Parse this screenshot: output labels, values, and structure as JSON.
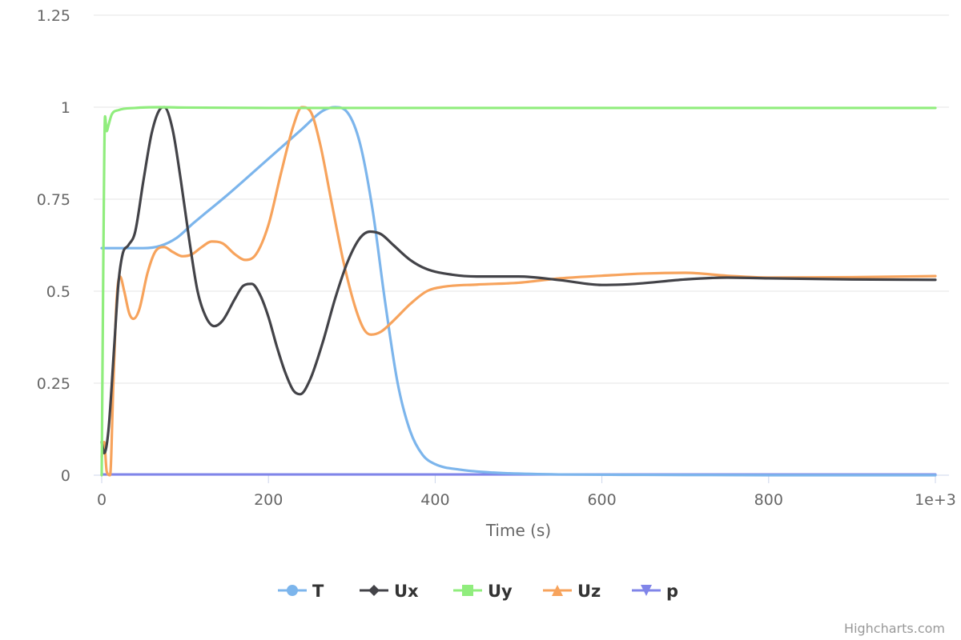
{
  "chart_data": {
    "type": "line",
    "title": "",
    "xlabel": "Time (s)",
    "ylabel": "",
    "xlim": [
      0,
      1000
    ],
    "ylim": [
      0,
      1.25
    ],
    "x_ticks": [
      0,
      200,
      400,
      600,
      800,
      1000
    ],
    "x_tick_labels": [
      "0",
      "200",
      "400",
      "600",
      "800",
      "1e+3"
    ],
    "y_ticks": [
      0,
      0.25,
      0.5,
      0.75,
      1,
      1.25
    ],
    "y_tick_labels": [
      "0",
      "0.25",
      "0.5",
      "0.75",
      "1",
      "1.25"
    ],
    "grid": "horizontal",
    "legend_position": "bottom",
    "credits": "Highcharts.com",
    "series": [
      {
        "name": "T",
        "color": "#7cb5ec",
        "marker": "circle",
        "points": [
          [
            0,
            0.617
          ],
          [
            20,
            0.617
          ],
          [
            50,
            0.617
          ],
          [
            70,
            0.623
          ],
          [
            90,
            0.645
          ],
          [
            110,
            0.685
          ],
          [
            150,
            0.76
          ],
          [
            200,
            0.86
          ],
          [
            240,
            0.94
          ],
          [
            265,
            0.99
          ],
          [
            280,
            1.0
          ],
          [
            295,
            0.985
          ],
          [
            310,
            0.9
          ],
          [
            325,
            0.72
          ],
          [
            340,
            0.47
          ],
          [
            355,
            0.25
          ],
          [
            370,
            0.12
          ],
          [
            385,
            0.055
          ],
          [
            400,
            0.03
          ],
          [
            430,
            0.015
          ],
          [
            470,
            0.007
          ],
          [
            550,
            0.002
          ],
          [
            650,
            0.001
          ],
          [
            800,
            0.0
          ],
          [
            1000,
            0.0
          ]
        ]
      },
      {
        "name": "Ux",
        "color": "#434348",
        "marker": "diamond",
        "points": [
          [
            0,
            0.09
          ],
          [
            3,
            0.06
          ],
          [
            8,
            0.12
          ],
          [
            15,
            0.35
          ],
          [
            20,
            0.52
          ],
          [
            25,
            0.6
          ],
          [
            32,
            0.625
          ],
          [
            40,
            0.66
          ],
          [
            50,
            0.8
          ],
          [
            60,
            0.93
          ],
          [
            70,
            0.995
          ],
          [
            75,
            1.0
          ],
          [
            85,
            0.94
          ],
          [
            95,
            0.8
          ],
          [
            105,
            0.64
          ],
          [
            115,
            0.5
          ],
          [
            125,
            0.43
          ],
          [
            135,
            0.405
          ],
          [
            145,
            0.42
          ],
          [
            160,
            0.48
          ],
          [
            170,
            0.515
          ],
          [
            180,
            0.52
          ],
          [
            190,
            0.49
          ],
          [
            200,
            0.43
          ],
          [
            210,
            0.35
          ],
          [
            220,
            0.28
          ],
          [
            230,
            0.23
          ],
          [
            238,
            0.22
          ],
          [
            250,
            0.26
          ],
          [
            265,
            0.36
          ],
          [
            280,
            0.48
          ],
          [
            295,
            0.58
          ],
          [
            310,
            0.645
          ],
          [
            322,
            0.662
          ],
          [
            335,
            0.655
          ],
          [
            350,
            0.625
          ],
          [
            370,
            0.585
          ],
          [
            390,
            0.56
          ],
          [
            420,
            0.545
          ],
          [
            450,
            0.54
          ],
          [
            500,
            0.54
          ],
          [
            550,
            0.53
          ],
          [
            600,
            0.517
          ],
          [
            640,
            0.52
          ],
          [
            700,
            0.532
          ],
          [
            750,
            0.537
          ],
          [
            800,
            0.535
          ],
          [
            900,
            0.532
          ],
          [
            1000,
            0.531
          ]
        ]
      },
      {
        "name": "Uy",
        "color": "#90ed7d",
        "marker": "square",
        "points": [
          [
            0,
            0.0
          ],
          [
            2,
            0.6
          ],
          [
            4,
            0.975
          ],
          [
            6,
            0.935
          ],
          [
            8,
            0.95
          ],
          [
            12,
            0.98
          ],
          [
            20,
            0.992
          ],
          [
            40,
            0.998
          ],
          [
            70,
            1.0
          ],
          [
            100,
            0.999
          ],
          [
            200,
            0.998
          ],
          [
            300,
            0.998
          ],
          [
            500,
            0.998
          ],
          [
            1000,
            0.998
          ]
        ]
      },
      {
        "name": "Uz",
        "color": "#f7a35c",
        "marker": "triangle",
        "points": [
          [
            0,
            0.05
          ],
          [
            3,
            0.09
          ],
          [
            6,
            0.01
          ],
          [
            10,
            0.0
          ],
          [
            14,
            0.25
          ],
          [
            18,
            0.48
          ],
          [
            22,
            0.54
          ],
          [
            27,
            0.5
          ],
          [
            33,
            0.44
          ],
          [
            38,
            0.425
          ],
          [
            45,
            0.45
          ],
          [
            55,
            0.55
          ],
          [
            65,
            0.61
          ],
          [
            75,
            0.62
          ],
          [
            85,
            0.607
          ],
          [
            97,
            0.595
          ],
          [
            108,
            0.6
          ],
          [
            120,
            0.62
          ],
          [
            132,
            0.635
          ],
          [
            145,
            0.63
          ],
          [
            160,
            0.6
          ],
          [
            172,
            0.585
          ],
          [
            185,
            0.6
          ],
          [
            200,
            0.68
          ],
          [
            215,
            0.82
          ],
          [
            230,
            0.95
          ],
          [
            240,
            1.0
          ],
          [
            250,
            0.99
          ],
          [
            262,
            0.9
          ],
          [
            275,
            0.75
          ],
          [
            290,
            0.58
          ],
          [
            305,
            0.45
          ],
          [
            315,
            0.395
          ],
          [
            323,
            0.382
          ],
          [
            335,
            0.39
          ],
          [
            350,
            0.42
          ],
          [
            370,
            0.465
          ],
          [
            390,
            0.5
          ],
          [
            410,
            0.512
          ],
          [
            450,
            0.518
          ],
          [
            500,
            0.523
          ],
          [
            550,
            0.535
          ],
          [
            600,
            0.542
          ],
          [
            650,
            0.548
          ],
          [
            700,
            0.55
          ],
          [
            750,
            0.542
          ],
          [
            800,
            0.537
          ],
          [
            900,
            0.538
          ],
          [
            1000,
            0.541
          ]
        ]
      },
      {
        "name": "p",
        "color": "#8085e9",
        "marker": "triangle-down",
        "points": [
          [
            0,
            0.002
          ],
          [
            1000,
            0.002
          ]
        ]
      }
    ]
  }
}
